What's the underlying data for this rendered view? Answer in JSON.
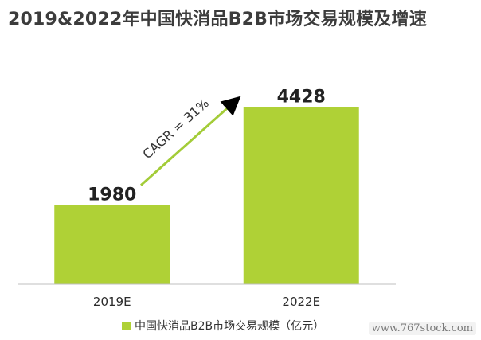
{
  "title": "2019&2022年中国快消品B2B市场交易规模及增速",
  "chart_data": {
    "type": "bar",
    "categories": [
      "2019E",
      "2022E"
    ],
    "series": [
      {
        "name": "中国快消品B2B市场交易规模（亿元）",
        "values": [
          1980,
          4428
        ],
        "color": "#afd136"
      }
    ],
    "data_labels": [
      "1980",
      "4428"
    ],
    "ylim": [
      0,
      4600
    ],
    "grid": false,
    "legend_position": "bottom",
    "annotation": {
      "text": "CAGR = 31%",
      "color": "#a3cc38"
    }
  },
  "watermark": "www.767stock.com"
}
